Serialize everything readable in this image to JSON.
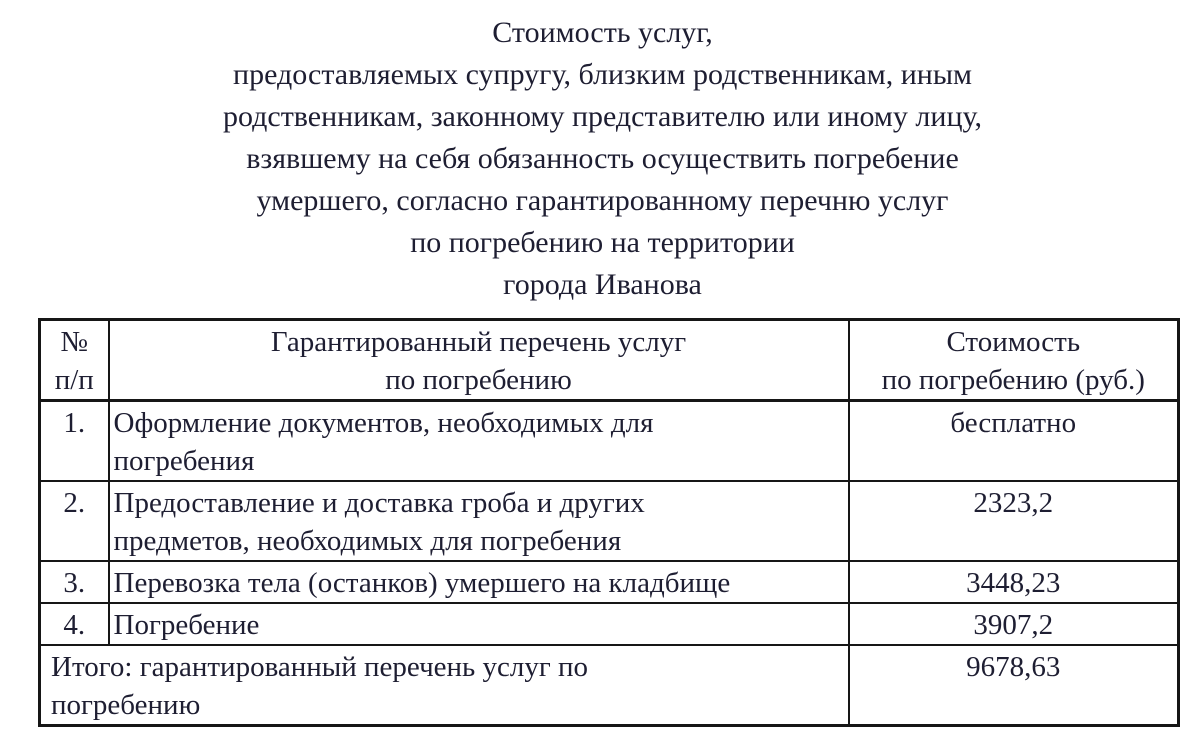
{
  "colors": {
    "background": "#ffffff",
    "text": "#1e1e32",
    "table_border": "#161616"
  },
  "document": {
    "title_lines": [
      "Стоимость услуг,",
      "предоставляемых супругу, близким родственникам, иным",
      "родственникам, законному представителю или иному лицу,",
      "взявшему на себя обязанность осуществить погребение",
      "умершего, согласно гарантированному перечню услуг",
      "по погребению на территории",
      "города Иванова"
    ]
  },
  "table": {
    "headers": {
      "num_lines": [
        "№",
        "п/п"
      ],
      "service_lines": [
        "Гарантированный перечень услуг",
        "по погребению"
      ],
      "cost_lines": [
        "Стоимость",
        "по погребению (руб.)"
      ]
    },
    "rows": [
      {
        "num": "1.",
        "service_lines": [
          "Оформление документов, необходимых для",
          "погребения"
        ],
        "cost": "бесплатно"
      },
      {
        "num": "2.",
        "service_lines": [
          "Предоставление и доставка гроба и других",
          "предметов, необходимых для погребения"
        ],
        "cost": "2323,2"
      },
      {
        "num": "3.",
        "service_lines": [
          "Перевозка тела (останков) умершего на кладбище"
        ],
        "cost": "3448,23"
      },
      {
        "num": "4.",
        "service_lines": [
          "Погребение"
        ],
        "cost": "3907,2"
      }
    ],
    "total": {
      "label_lines": [
        "Итого: гарантированный перечень услуг по",
        "погребению"
      ],
      "cost": "9678,63"
    }
  }
}
